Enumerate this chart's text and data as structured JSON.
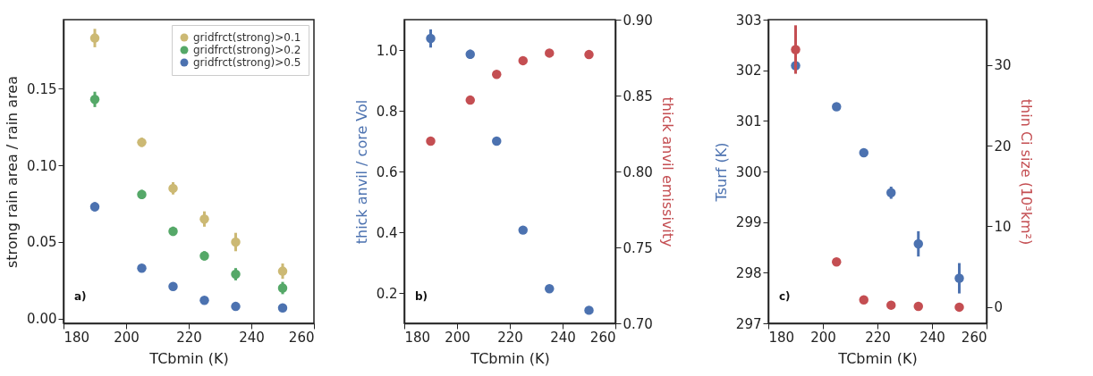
{
  "chart_data": [
    {
      "type": "scatter",
      "xlabel": "TCbmin (K)",
      "ylabel": "strong rain area / rain area",
      "x": [
        190,
        205,
        215,
        225,
        235,
        250
      ],
      "xlim": [
        180,
        260
      ],
      "xticks": [
        180,
        200,
        220,
        240,
        260
      ],
      "ylim": [
        -0.003,
        0.195
      ],
      "yticks": [
        {
          "value": 0,
          "label": "0.00"
        },
        {
          "value": 0.05,
          "label": "0.05"
        },
        {
          "value": 0.1,
          "label": "0.10"
        },
        {
          "value": 0.15,
          "label": "0.15"
        }
      ],
      "marker": "circle",
      "legend": "top right",
      "annotations": [
        "a)"
      ],
      "series": [
        {
          "name": "gridfrct(strong)>0.1",
          "color": "#ccb974",
          "values": [
            0.183,
            0.115,
            0.085,
            0.065,
            0.05,
            0.031
          ],
          "errors": [
            0.006,
            0.003,
            0.004,
            0.005,
            0.006,
            0.005
          ]
        },
        {
          "name": "gridfrct(strong)>0.2",
          "color": "#55a868",
          "values": [
            0.143,
            0.081,
            0.057,
            0.041,
            0.029,
            0.02
          ],
          "errors": [
            0.005,
            0.003,
            0.003,
            0.003,
            0.004,
            0.004
          ]
        },
        {
          "name": "gridfrct(strong)>0.5",
          "color": "#4c72b0",
          "values": [
            0.073,
            0.033,
            0.021,
            0.012,
            0.008,
            0.007
          ],
          "errors": [
            0.003,
            0.002,
            0.002,
            0.002,
            0.002,
            0.002
          ]
        }
      ]
    },
    {
      "type": "scatter",
      "xlabel": "TCbmin (K)",
      "ylabel": "thick anvil / core Vol",
      "y2label": "thick anvil emissivity",
      "x": [
        190,
        205,
        215,
        225,
        235,
        250
      ],
      "xlim": [
        180,
        260
      ],
      "xticks": [
        180,
        200,
        220,
        240,
        260
      ],
      "ylim": [
        0.1,
        1.1
      ],
      "yticks": [
        0.2,
        0.4,
        0.6,
        0.8,
        {
          "value": 1,
          "label": "1.0"
        }
      ],
      "y2lim": [
        0.7,
        0.9
      ],
      "y2ticks": [
        {
          "value": 0.7,
          "label": "0.70"
        },
        {
          "value": 0.75,
          "label": "0.75"
        },
        {
          "value": 0.8,
          "label": "0.80"
        },
        {
          "value": 0.85,
          "label": "0.85"
        },
        {
          "value": 0.9,
          "label": "0.90"
        }
      ],
      "marker": "circle",
      "annotations": [
        "b)"
      ],
      "series": [
        {
          "color": "#4c72b0",
          "values": [
            1.038,
            0.986,
            0.7,
            0.407,
            0.214,
            0.143
          ],
          "errors": [
            0.03,
            0.015,
            0.01,
            0.01,
            0.01,
            0.01
          ]
        },
        {
          "color": "#c44e52",
          "axis": "y2",
          "values": [
            0.82,
            0.847,
            0.864,
            0.873,
            0.878,
            0.877
          ]
        }
      ]
    },
    {
      "type": "scatter",
      "xlabel": "TCbmin (K)",
      "ylabel": "Tsurf (K)",
      "y2label": "thin Ci size (10³km²)",
      "x": [
        190,
        205,
        215,
        225,
        235,
        250
      ],
      "xlim": [
        180,
        260
      ],
      "xticks": [
        180,
        200,
        220,
        240,
        260
      ],
      "ylim": [
        297,
        303
      ],
      "yticks": [
        297,
        298,
        299,
        300,
        301,
        302,
        303
      ],
      "y2lim": [
        -2,
        35.6
      ],
      "y2ticks": [
        0,
        10,
        20,
        30
      ],
      "marker": "circle",
      "annotations": [
        "c)"
      ],
      "series": [
        {
          "color": "#4c72b0",
          "values": [
            302.09,
            301.28,
            300.37,
            299.58,
            298.57,
            297.89
          ],
          "errors": [
            0.1,
            0.05,
            0.05,
            0.12,
            0.25,
            0.3
          ]
        },
        {
          "color": "#c44e52",
          "axis": "y2",
          "values": [
            31.9,
            5.6,
            0.9,
            0.25,
            0.1,
            0.0
          ],
          "errors": [
            3,
            0.3,
            0.3,
            0.2,
            0.2,
            0.2
          ]
        }
      ]
    }
  ]
}
